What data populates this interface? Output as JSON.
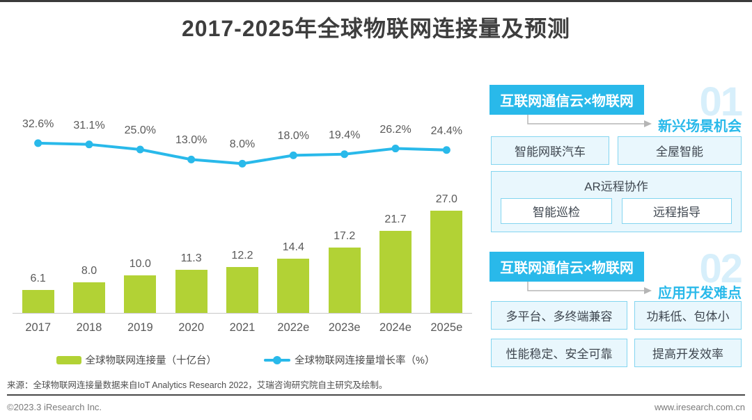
{
  "title": "2017-2025年全球物联网连接量及预测",
  "chart_data": {
    "type": "bar+line",
    "categories": [
      "2017",
      "2018",
      "2019",
      "2020",
      "2021",
      "2022e",
      "2023e",
      "2024e",
      "2025e"
    ],
    "series": [
      {
        "name": "全球物联网连接量（十亿台）",
        "type": "bar",
        "values": [
          6.1,
          8.0,
          10.0,
          11.3,
          12.2,
          14.4,
          17.2,
          21.7,
          27.0
        ],
        "color": "#b2d235"
      },
      {
        "name": "全球物联网连接量增长率（%）",
        "type": "line",
        "values": [
          32.6,
          31.1,
          25.0,
          13.0,
          8.0,
          18.0,
          19.4,
          26.2,
          24.4
        ],
        "color": "#29b9ea",
        "label_suffix": "%"
      }
    ],
    "title": "2017-2025年全球物联网连接量及预测",
    "xlabel": "",
    "ylabel": "",
    "grid": false,
    "legend_position": "bottom"
  },
  "panel": {
    "sections": [
      {
        "header": "互联网通信云×物联网",
        "number": "01",
        "label": "新兴场景机会",
        "boxes": [
          "智能网联汽车",
          "全屋智能"
        ],
        "group_box": {
          "title": "AR远程协作",
          "items": [
            "智能巡检",
            "远程指导"
          ]
        }
      },
      {
        "header": "互联网通信云×物联网",
        "number": "02",
        "label": "应用开发难点",
        "boxes": [
          "多平台、多终端兼容",
          "功耗低、包体小",
          "性能稳定、安全可靠",
          "提高开发效率"
        ]
      }
    ]
  },
  "source": "来源：全球物联网连接量数据来自IoT Analytics Research 2022，艾瑞咨询研究院自主研究及绘制。",
  "footer": {
    "left": "©2023.3 iResearch Inc.",
    "right": "www.iresearch.com.cn"
  },
  "colors": {
    "bar_green": "#b2d235",
    "line_blue": "#29b9ea",
    "accent_blue": "#29b9ea",
    "watermark_blue": "#d7effb",
    "box_fill": "#e9f7fd",
    "box_border": "#83d5f0",
    "connector_gray": "#b5b5b5"
  }
}
